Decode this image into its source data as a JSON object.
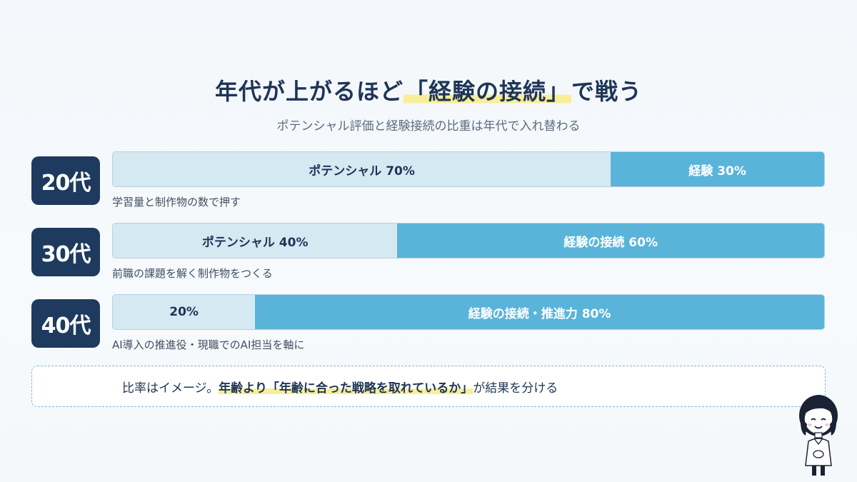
{
  "header": {
    "title_pre": "年代が上がるほど",
    "title_highlight": "「経験の接続」",
    "title_post": "で戦う",
    "subtitle": "ポテンシャル評価と経験接続の比重は年代で入れ替わる"
  },
  "chart_data": {
    "type": "bar",
    "orientation": "horizontal-stacked",
    "unit": "%",
    "categories": [
      "20代",
      "30代",
      "40代"
    ],
    "series": [
      {
        "values": [
          70,
          40,
          20
        ],
        "labels": [
          "ポテンシャル 70%",
          "ポテンシャル 40%",
          "20%"
        ]
      },
      {
        "values": [
          30,
          60,
          80
        ],
        "labels": [
          "経験 30%",
          "経験の接続 60%",
          "経験の接続・推進力 80%"
        ]
      }
    ],
    "notes": [
      "学習量と制作物の数で押す",
      "前職の課題を解く制作物をつくる",
      "AI導入の推進役・現職でのAI担当を軸に"
    ],
    "colors": {
      "potential": "#d5e9f3",
      "experience": "#5ab4da",
      "badge": "#1e3a5f"
    }
  },
  "callout": {
    "prefix": "比率はイメージ。",
    "emphasis": "年齢より「年齢に合った戦略を取れているか」",
    "suffix": "が結果を分ける"
  },
  "avatar": {
    "icon": "woman-character-icon"
  }
}
